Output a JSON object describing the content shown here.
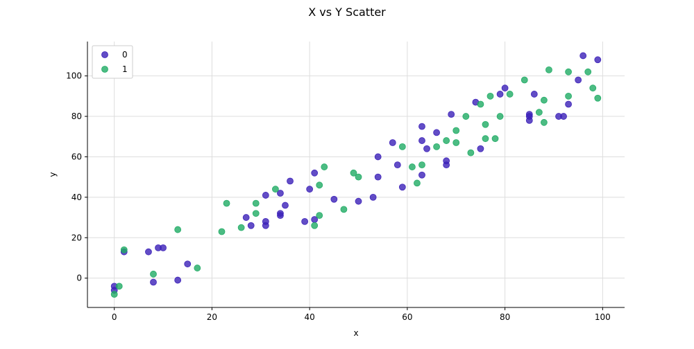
{
  "chart_data": {
    "type": "scatter",
    "title": "X vs Y Scatter",
    "xlabel": "x",
    "ylabel": "y",
    "xlim": [
      -5.5,
      104.5
    ],
    "ylim": [
      -14.5,
      117
    ],
    "xticks": [
      0,
      20,
      40,
      60,
      80,
      100
    ],
    "yticks": [
      0,
      20,
      40,
      60,
      80,
      100
    ],
    "grid": true,
    "legend_position": "top-left",
    "series": [
      {
        "name": "0",
        "color": "#3b20b8",
        "points": [
          [
            0,
            -4
          ],
          [
            0,
            -6
          ],
          [
            2,
            13
          ],
          [
            7,
            13
          ],
          [
            8,
            -2
          ],
          [
            9,
            15
          ],
          [
            10,
            15
          ],
          [
            13,
            -1
          ],
          [
            15,
            7
          ],
          [
            27,
            30
          ],
          [
            28,
            26
          ],
          [
            31,
            41
          ],
          [
            31,
            28
          ],
          [
            31,
            26
          ],
          [
            34,
            42
          ],
          [
            34,
            31
          ],
          [
            34,
            32
          ],
          [
            35,
            36
          ],
          [
            36,
            48
          ],
          [
            39,
            28
          ],
          [
            40,
            44
          ],
          [
            41,
            52
          ],
          [
            41,
            29
          ],
          [
            45,
            39
          ],
          [
            50,
            38
          ],
          [
            53,
            40
          ],
          [
            54,
            60
          ],
          [
            54,
            50
          ],
          [
            57,
            67
          ],
          [
            58,
            56
          ],
          [
            59,
            45
          ],
          [
            63,
            75
          ],
          [
            63,
            68
          ],
          [
            63,
            51
          ],
          [
            64,
            64
          ],
          [
            66,
            72
          ],
          [
            68,
            58
          ],
          [
            68,
            56
          ],
          [
            69,
            81
          ],
          [
            74,
            87
          ],
          [
            75,
            64
          ],
          [
            79,
            91
          ],
          [
            80,
            94
          ],
          [
            85,
            81
          ],
          [
            85,
            80
          ],
          [
            85,
            78
          ],
          [
            86,
            91
          ],
          [
            91,
            80
          ],
          [
            92,
            80
          ],
          [
            93,
            86
          ],
          [
            95,
            98
          ],
          [
            96,
            110
          ],
          [
            99,
            108
          ]
        ]
      },
      {
        "name": "1",
        "color": "#1fab64",
        "points": [
          [
            0,
            -8
          ],
          [
            1,
            -4
          ],
          [
            2,
            14
          ],
          [
            8,
            2
          ],
          [
            13,
            24
          ],
          [
            17,
            5
          ],
          [
            22,
            23
          ],
          [
            23,
            37
          ],
          [
            26,
            25
          ],
          [
            29,
            37
          ],
          [
            29,
            32
          ],
          [
            33,
            44
          ],
          [
            41,
            26
          ],
          [
            42,
            46
          ],
          [
            42,
            31
          ],
          [
            43,
            55
          ],
          [
            47,
            34
          ],
          [
            49,
            52
          ],
          [
            50,
            50
          ],
          [
            59,
            65
          ],
          [
            61,
            55
          ],
          [
            62,
            47
          ],
          [
            63,
            56
          ],
          [
            66,
            65
          ],
          [
            68,
            68
          ],
          [
            70,
            73
          ],
          [
            70,
            67
          ],
          [
            72,
            80
          ],
          [
            73,
            62
          ],
          [
            75,
            86
          ],
          [
            76,
            76
          ],
          [
            76,
            69
          ],
          [
            77,
            90
          ],
          [
            78,
            69
          ],
          [
            79,
            80
          ],
          [
            81,
            91
          ],
          [
            84,
            98
          ],
          [
            87,
            82
          ],
          [
            88,
            88
          ],
          [
            88,
            77
          ],
          [
            89,
            103
          ],
          [
            93,
            102
          ],
          [
            93,
            90
          ],
          [
            97,
            102
          ],
          [
            98,
            94
          ],
          [
            99,
            89
          ]
        ]
      }
    ]
  }
}
